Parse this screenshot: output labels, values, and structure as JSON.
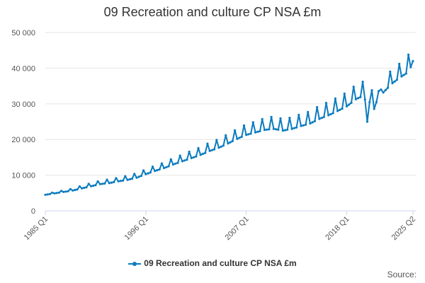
{
  "chart_data": {
    "type": "line",
    "title": "09 Recreation and culture CP NSA £m",
    "xlabel": "",
    "ylabel": "",
    "ylim": [
      0,
      50000
    ],
    "yticks": [
      0,
      10000,
      20000,
      30000,
      40000,
      50000
    ],
    "ytick_labels": [
      "0",
      "10 000",
      "20 000",
      "30 000",
      "40 000",
      "50 000"
    ],
    "x_range": [
      "1985 Q1",
      "2025 Q2"
    ],
    "xtick_labels": [
      "1985 Q1",
      "1996 Q1",
      "2007 Q1",
      "2018 Q1",
      "2025 Q2"
    ],
    "grid": "horizontal",
    "legend_position": "bottom",
    "series": [
      {
        "name": "09 Recreation and culture CP NSA £m",
        "color": "#0b7cbf",
        "yearly_q1": [
          4500,
          4900,
          5300,
          5700,
          6300,
          6900,
          7500,
          7800,
          8300,
          8700,
          9300,
          10300,
          11200,
          12000,
          13000,
          13900,
          14800,
          15700,
          16800,
          17700,
          18900,
          20200,
          21300,
          22000,
          22700,
          23000,
          22500,
          23000,
          23800,
          24500,
          25800,
          26800,
          28000,
          29300,
          31300,
          32500,
          30800,
          33200,
          35800,
          37700,
          39300
        ],
        "q4_uplift": [
          300,
          400,
          500,
          700,
          800,
          900,
          1000,
          1000,
          1100,
          1200,
          1300,
          1400,
          1500,
          1700,
          1800,
          2000,
          2100,
          2300,
          2400,
          2600,
          2700,
          2900,
          3000,
          3200,
          3400,
          3300,
          3200,
          3300,
          3400,
          3600,
          3700,
          3800,
          3900,
          4000,
          4000,
          4100,
          0,
          3900,
          4000,
          4200,
          4300
        ],
        "quarterly_override": {
          "2020 Q1": 31200,
          "2020 Q2": 25000,
          "2020 Q3": 30500,
          "2020 Q4": 33800,
          "2021 Q1": 28600,
          "2021 Q2": 30500,
          "2021 Q3": 33600,
          "2021 Q4": 34000,
          "2024 Q4": 43800,
          "2025 Q1": 40300,
          "2025 Q2": 42000
        }
      }
    ]
  },
  "source": "Source:"
}
